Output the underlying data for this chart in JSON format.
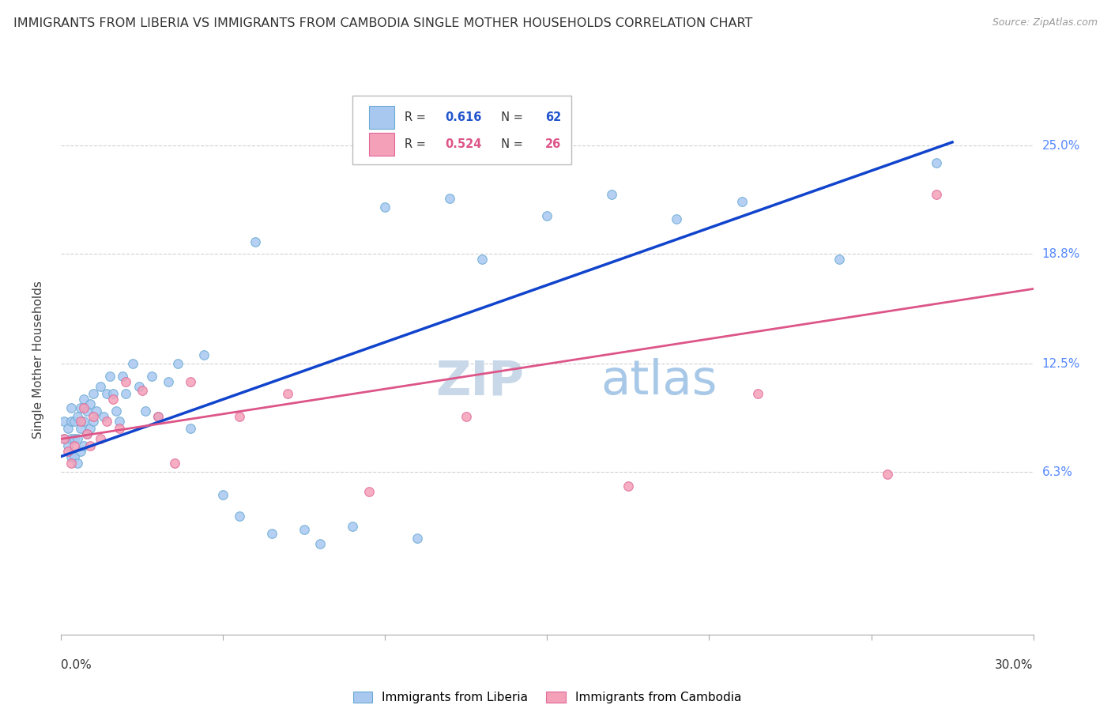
{
  "title": "IMMIGRANTS FROM LIBERIA VS IMMIGRANTS FROM CAMBODIA SINGLE MOTHER HOUSEHOLDS CORRELATION CHART",
  "source": "Source: ZipAtlas.com",
  "ylabel": "Single Mother Households",
  "xlim": [
    0.0,
    0.3
  ],
  "ylim": [
    -0.03,
    0.285
  ],
  "ytick_values": [
    0.063,
    0.125,
    0.188,
    0.25
  ],
  "ytick_labels": [
    "6.3%",
    "12.5%",
    "18.8%",
    "25.0%"
  ],
  "xtick_values": [
    0.0,
    0.05,
    0.1,
    0.15,
    0.2,
    0.25,
    0.3
  ],
  "watermark_zip": "ZIP",
  "watermark_atlas": "atlas",
  "liberia_color": "#a8c8f0",
  "liberia_edge_color": "#6aaad4",
  "cambodia_color": "#f4a0b8",
  "cambodia_edge_color": "#e06898",
  "liberia_line_color": "#1144cc",
  "cambodia_line_color": "#dd5588",
  "liberia_R": "0.616",
  "liberia_N": "62",
  "cambodia_R": "0.524",
  "cambodia_N": "26",
  "liberia_x": [
    0.001,
    0.001,
    0.002,
    0.002,
    0.003,
    0.003,
    0.003,
    0.003,
    0.004,
    0.004,
    0.004,
    0.005,
    0.005,
    0.005,
    0.006,
    0.006,
    0.006,
    0.007,
    0.007,
    0.007,
    0.008,
    0.008,
    0.009,
    0.009,
    0.01,
    0.01,
    0.011,
    0.012,
    0.013,
    0.014,
    0.015,
    0.016,
    0.017,
    0.018,
    0.019,
    0.02,
    0.022,
    0.024,
    0.026,
    0.028,
    0.03,
    0.033,
    0.036,
    0.04,
    0.044,
    0.05,
    0.055,
    0.06,
    0.065,
    0.075,
    0.08,
    0.09,
    0.1,
    0.11,
    0.12,
    0.13,
    0.15,
    0.17,
    0.19,
    0.21,
    0.24,
    0.27
  ],
  "liberia_y": [
    0.092,
    0.082,
    0.078,
    0.088,
    0.072,
    0.082,
    0.092,
    0.1,
    0.072,
    0.082,
    0.092,
    0.068,
    0.082,
    0.095,
    0.075,
    0.088,
    0.1,
    0.078,
    0.092,
    0.105,
    0.085,
    0.098,
    0.088,
    0.102,
    0.092,
    0.108,
    0.098,
    0.112,
    0.095,
    0.108,
    0.118,
    0.108,
    0.098,
    0.092,
    0.118,
    0.108,
    0.125,
    0.112,
    0.098,
    0.118,
    0.095,
    0.115,
    0.125,
    0.088,
    0.13,
    0.05,
    0.038,
    0.195,
    0.028,
    0.03,
    0.022,
    0.032,
    0.215,
    0.025,
    0.22,
    0.185,
    0.21,
    0.222,
    0.208,
    0.218,
    0.185,
    0.24
  ],
  "cambodia_x": [
    0.001,
    0.002,
    0.003,
    0.004,
    0.006,
    0.007,
    0.008,
    0.009,
    0.01,
    0.012,
    0.014,
    0.016,
    0.018,
    0.02,
    0.025,
    0.03,
    0.035,
    0.04,
    0.055,
    0.07,
    0.095,
    0.125,
    0.175,
    0.215,
    0.255,
    0.27
  ],
  "cambodia_y": [
    0.082,
    0.075,
    0.068,
    0.078,
    0.092,
    0.1,
    0.085,
    0.078,
    0.095,
    0.082,
    0.092,
    0.105,
    0.088,
    0.115,
    0.11,
    0.095,
    0.068,
    0.115,
    0.095,
    0.108,
    0.052,
    0.095,
    0.055,
    0.108,
    0.062,
    0.222
  ],
  "liberia_trend_x": [
    0.0,
    0.275
  ],
  "liberia_trend_y": [
    0.072,
    0.252
  ],
  "cambodia_trend_x": [
    0.0,
    0.3
  ],
  "cambodia_trend_y": [
    0.082,
    0.168
  ],
  "background_color": "#ffffff",
  "grid_color": "#cccccc",
  "title_fontsize": 11.5,
  "source_fontsize": 9,
  "watermark_zip_color": "#c8d8e8",
  "watermark_atlas_color": "#a8c8e8",
  "watermark_fontsize": 44,
  "marker_size": 70
}
